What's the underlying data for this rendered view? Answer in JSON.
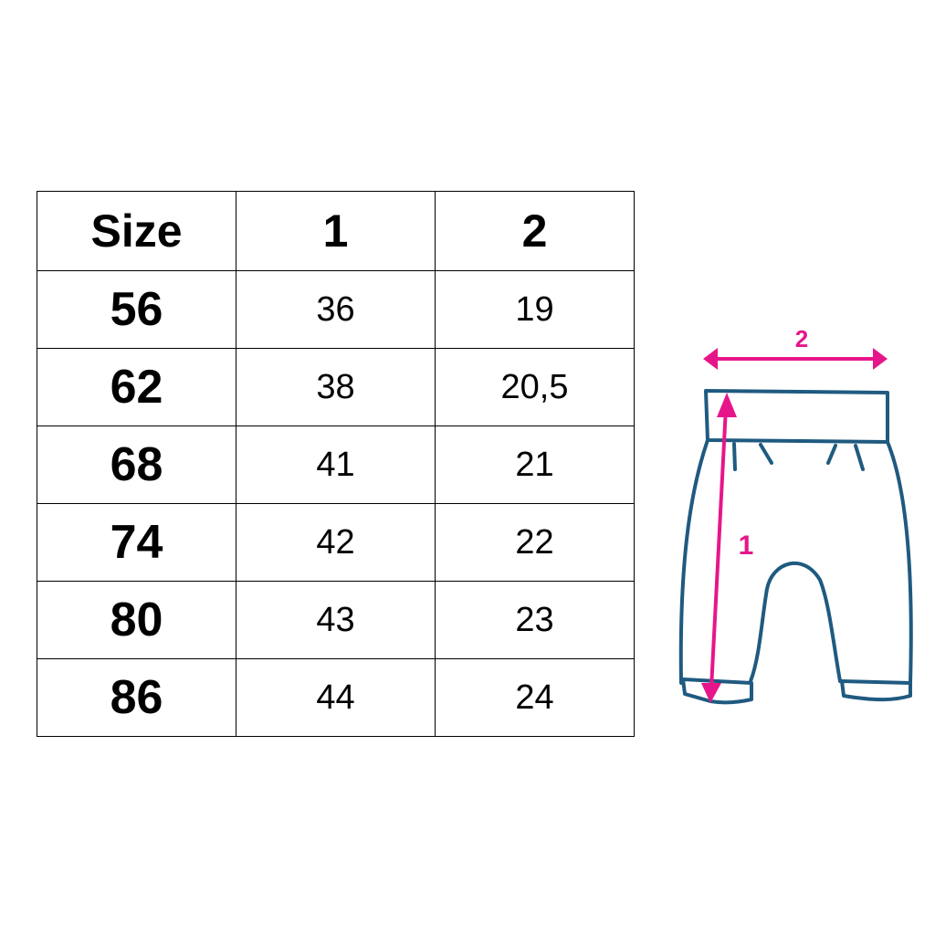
{
  "table": {
    "headers": [
      "Size",
      "1",
      "2"
    ],
    "rows": [
      [
        "56",
        "36",
        "19"
      ],
      [
        "62",
        "38",
        "20,5"
      ],
      [
        "68",
        "41",
        "21"
      ],
      [
        "74",
        "42",
        "22"
      ],
      [
        "80",
        "43",
        "23"
      ],
      [
        "86",
        "44",
        "24"
      ]
    ]
  },
  "diagram": {
    "length_label": "1",
    "width_label": "2",
    "outline_color": "#1f5a80",
    "arrow_color": "#e6168a"
  }
}
